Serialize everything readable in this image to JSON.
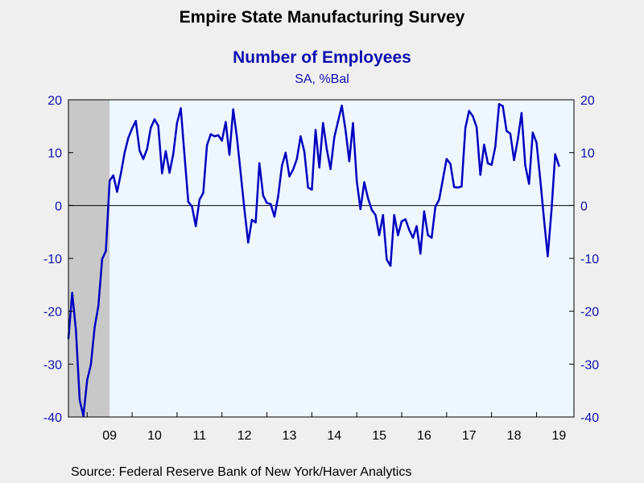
{
  "chart_data": {
    "type": "line",
    "title": "Empire State Manufacturing Survey",
    "subtitle": "Number of Employees",
    "units": "SA, %Bal",
    "source": "Source:  Federal Reserve Bank of New York/Haver Analytics",
    "ylim": [
      -40,
      20
    ],
    "yticks": [
      20,
      10,
      0,
      -10,
      -20,
      -30,
      -40
    ],
    "xlim": [
      "2008-08",
      "2019-11"
    ],
    "xtick_labels": [
      "09",
      "10",
      "11",
      "12",
      "13",
      "14",
      "15",
      "16",
      "17",
      "18",
      "19"
    ],
    "recession_shading": {
      "start": "2008-08",
      "end": "2009-06"
    },
    "zero_line": true,
    "line_color": "#0000c0",
    "plot_background": "#eef6ff",
    "recession_color": "#c8c8c8",
    "series": [
      {
        "values": [
          {
            "x": "2008-08",
            "y": -25.1
          },
          {
            "x": "2008-09",
            "y": -16.5
          },
          {
            "x": "2008-10",
            "y": -23.5
          },
          {
            "x": "2008-11",
            "y": -36.8
          },
          {
            "x": "2008-12",
            "y": -39.8
          },
          {
            "x": "2009-01",
            "y": -33.0
          },
          {
            "x": "2009-02",
            "y": -30.1
          },
          {
            "x": "2009-03",
            "y": -23.0
          },
          {
            "x": "2009-04",
            "y": -19.0
          },
          {
            "x": "2009-05",
            "y": -10.1
          },
          {
            "x": "2009-06",
            "y": -8.6
          },
          {
            "x": "2009-07",
            "y": 4.7
          },
          {
            "x": "2009-08",
            "y": 5.7
          },
          {
            "x": "2009-09",
            "y": 2.6
          },
          {
            "x": "2009-10",
            "y": 6.0
          },
          {
            "x": "2009-11",
            "y": 10.0
          },
          {
            "x": "2009-12",
            "y": 12.8
          },
          {
            "x": "2010-01",
            "y": 14.6
          },
          {
            "x": "2010-02",
            "y": 16.0
          },
          {
            "x": "2010-03",
            "y": 10.4
          },
          {
            "x": "2010-04",
            "y": 8.8
          },
          {
            "x": "2010-05",
            "y": 10.7
          },
          {
            "x": "2010-06",
            "y": 14.7
          },
          {
            "x": "2010-07",
            "y": 16.3
          },
          {
            "x": "2010-08",
            "y": 15.1
          },
          {
            "x": "2010-09",
            "y": 6.1
          },
          {
            "x": "2010-10",
            "y": 10.3
          },
          {
            "x": "2010-11",
            "y": 6.2
          },
          {
            "x": "2010-12",
            "y": 9.8
          },
          {
            "x": "2011-01",
            "y": 15.6
          },
          {
            "x": "2011-02",
            "y": 18.4
          },
          {
            "x": "2011-03",
            "y": 9.5
          },
          {
            "x": "2011-04",
            "y": 0.7
          },
          {
            "x": "2011-05",
            "y": -0.2
          },
          {
            "x": "2011-06",
            "y": -3.9
          },
          {
            "x": "2011-07",
            "y": 1.1
          },
          {
            "x": "2011-08",
            "y": 2.4
          },
          {
            "x": "2011-09",
            "y": 11.4
          },
          {
            "x": "2011-10",
            "y": 13.5
          },
          {
            "x": "2011-11",
            "y": 13.1
          },
          {
            "x": "2011-12",
            "y": 13.3
          },
          {
            "x": "2012-01",
            "y": 12.3
          },
          {
            "x": "2012-02",
            "y": 15.8
          },
          {
            "x": "2012-03",
            "y": 9.6
          },
          {
            "x": "2012-04",
            "y": 18.2
          },
          {
            "x": "2012-05",
            "y": 12.9
          },
          {
            "x": "2012-06",
            "y": 6.1
          },
          {
            "x": "2012-07",
            "y": -0.7
          },
          {
            "x": "2012-08",
            "y": -7.0
          },
          {
            "x": "2012-09",
            "y": -2.7
          },
          {
            "x": "2012-10",
            "y": -3.2
          },
          {
            "x": "2012-11",
            "y": 8.0
          },
          {
            "x": "2012-12",
            "y": 1.9
          },
          {
            "x": "2013-01",
            "y": 0.5
          },
          {
            "x": "2013-02",
            "y": 0.3
          },
          {
            "x": "2013-03",
            "y": -2.1
          },
          {
            "x": "2013-04",
            "y": 1.7
          },
          {
            "x": "2013-05",
            "y": 7.5
          },
          {
            "x": "2013-06",
            "y": 10.0
          },
          {
            "x": "2013-07",
            "y": 5.5
          },
          {
            "x": "2013-08",
            "y": 6.8
          },
          {
            "x": "2013-09",
            "y": 8.8
          },
          {
            "x": "2013-10",
            "y": 13.1
          },
          {
            "x": "2013-11",
            "y": 10.2
          },
          {
            "x": "2013-12",
            "y": 3.4
          },
          {
            "x": "2014-01",
            "y": 3.0
          },
          {
            "x": "2014-02",
            "y": 14.3
          },
          {
            "x": "2014-03",
            "y": 7.2
          },
          {
            "x": "2014-04",
            "y": 15.6
          },
          {
            "x": "2014-05",
            "y": 10.6
          },
          {
            "x": "2014-06",
            "y": 6.9
          },
          {
            "x": "2014-07",
            "y": 12.9
          },
          {
            "x": "2014-08",
            "y": 15.9
          },
          {
            "x": "2014-09",
            "y": 18.9
          },
          {
            "x": "2014-10",
            "y": 14.3
          },
          {
            "x": "2014-11",
            "y": 8.4
          },
          {
            "x": "2014-12",
            "y": 15.6
          },
          {
            "x": "2015-01",
            "y": 4.6
          },
          {
            "x": "2015-02",
            "y": -0.7
          },
          {
            "x": "2015-03",
            "y": 4.4
          },
          {
            "x": "2015-04",
            "y": 1.4
          },
          {
            "x": "2015-05",
            "y": -0.8
          },
          {
            "x": "2015-06",
            "y": -1.8
          },
          {
            "x": "2015-07",
            "y": -5.6
          },
          {
            "x": "2015-08",
            "y": -1.8
          },
          {
            "x": "2015-09",
            "y": -10.2
          },
          {
            "x": "2015-10",
            "y": -11.4
          },
          {
            "x": "2015-11",
            "y": -1.8
          },
          {
            "x": "2015-12",
            "y": -5.6
          },
          {
            "x": "2016-01",
            "y": -3.0
          },
          {
            "x": "2016-02",
            "y": -2.6
          },
          {
            "x": "2016-03",
            "y": -4.6
          },
          {
            "x": "2016-04",
            "y": -6.1
          },
          {
            "x": "2016-05",
            "y": -3.9
          },
          {
            "x": "2016-06",
            "y": -9.1
          },
          {
            "x": "2016-07",
            "y": -1.1
          },
          {
            "x": "2016-08",
            "y": -5.6
          },
          {
            "x": "2016-09",
            "y": -6.1
          },
          {
            "x": "2016-10",
            "y": -0.2
          },
          {
            "x": "2016-11",
            "y": 1.1
          },
          {
            "x": "2016-12",
            "y": 5.0
          },
          {
            "x": "2017-01",
            "y": 8.8
          },
          {
            "x": "2017-02",
            "y": 7.9
          },
          {
            "x": "2017-03",
            "y": 3.5
          },
          {
            "x": "2017-04",
            "y": 3.4
          },
          {
            "x": "2017-05",
            "y": 3.6
          },
          {
            "x": "2017-06",
            "y": 14.7
          },
          {
            "x": "2017-07",
            "y": 17.9
          },
          {
            "x": "2017-08",
            "y": 16.9
          },
          {
            "x": "2017-09",
            "y": 14.8
          },
          {
            "x": "2017-10",
            "y": 5.8
          },
          {
            "x": "2017-11",
            "y": 11.5
          },
          {
            "x": "2017-12",
            "y": 8.0
          },
          {
            "x": "2018-01",
            "y": 7.7
          },
          {
            "x": "2018-02",
            "y": 11.1
          },
          {
            "x": "2018-03",
            "y": 19.2
          },
          {
            "x": "2018-04",
            "y": 18.8
          },
          {
            "x": "2018-05",
            "y": 14.1
          },
          {
            "x": "2018-06",
            "y": 13.6
          },
          {
            "x": "2018-07",
            "y": 8.6
          },
          {
            "x": "2018-08",
            "y": 12.5
          },
          {
            "x": "2018-09",
            "y": 17.5
          },
          {
            "x": "2018-10",
            "y": 7.6
          },
          {
            "x": "2018-11",
            "y": 4.1
          },
          {
            "x": "2018-12",
            "y": 13.8
          },
          {
            "x": "2019-01",
            "y": 11.9
          },
          {
            "x": "2019-02",
            "y": 5.0
          },
          {
            "x": "2019-03",
            "y": -2.6
          },
          {
            "x": "2019-04",
            "y": -9.6
          },
          {
            "x": "2019-05",
            "y": -0.9
          },
          {
            "x": "2019-06",
            "y": 9.7
          },
          {
            "x": "2019-07",
            "y": 7.5
          }
        ]
      }
    ]
  }
}
